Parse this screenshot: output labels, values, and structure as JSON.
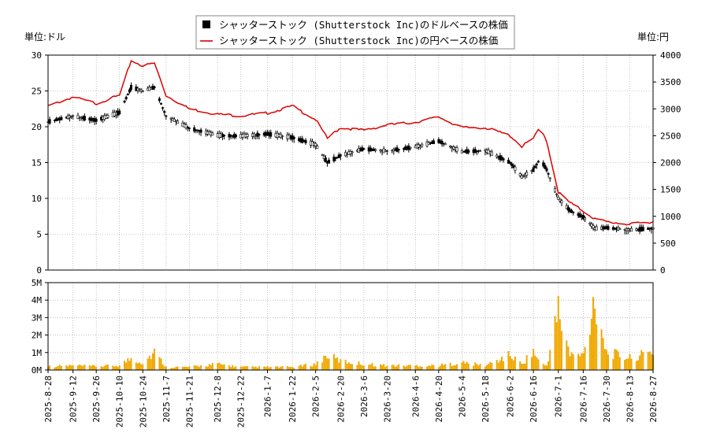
{
  "legend": {
    "usd": "シャッターストック (Shutterstock Inc)のドルベースの株価",
    "jpy": "シャッターストック (Shutterstock Inc)の円ベースの株価"
  },
  "units": {
    "left": "単位:ドル",
    "right": "単位:円"
  },
  "colors": {
    "usd": "#000000",
    "jpy": "#dd0000",
    "volume": "#f0a800",
    "grid": "#999999"
  },
  "chart_data": [
    {
      "type": "line",
      "name": "price",
      "x": [
        "2025-08-28",
        "2025-09-12",
        "2025-09-26",
        "2025-10-10",
        "2025-10-17",
        "2025-10-24",
        "2025-10-31",
        "2025-11-07",
        "2025-11-21",
        "2025-12-08",
        "2025-12-22",
        "2026-01-07",
        "2026-01-22",
        "2026-02-05",
        "2026-02-12",
        "2026-02-20",
        "2026-03-06",
        "2026-03-20",
        "2026-04-06",
        "2026-04-20",
        "2026-05-04",
        "2026-05-18",
        "2026-06-02",
        "2026-06-09",
        "2026-06-16",
        "2026-06-20",
        "2026-06-24",
        "2026-07-01",
        "2026-07-08",
        "2026-07-16",
        "2026-07-23",
        "2026-07-30",
        "2026-08-13",
        "2026-08-27"
      ],
      "series": [
        {
          "name": "シャッターストック (Shutterstock Inc)のドルベースの株価",
          "axis": "left",
          "values": [
            20.7,
            21.5,
            20.9,
            22.0,
            25.5,
            25.0,
            25.5,
            21.5,
            19.8,
            18.8,
            18.7,
            19.0,
            18.5,
            17.5,
            15.0,
            16.0,
            16.9,
            16.6,
            17.2,
            18.0,
            16.5,
            16.7,
            15.0,
            13.0,
            14.0,
            15.5,
            14.0,
            10.0,
            8.3,
            7.4,
            5.8,
            5.9,
            5.6,
            5.8
          ]
        },
        {
          "name": "シャッターストック (Shutterstock Inc)の円ベースの株価",
          "axis": "right",
          "values": [
            3050,
            3220,
            3100,
            3250,
            3900,
            3800,
            3850,
            3250,
            3000,
            2900,
            2870,
            2920,
            3050,
            2800,
            2450,
            2650,
            2600,
            2700,
            2750,
            2850,
            2650,
            2650,
            2500,
            2300,
            2450,
            2650,
            2400,
            1450,
            1250,
            1100,
            950,
            900,
            850,
            900
          ]
        }
      ],
      "left_axis": {
        "ylim": [
          0,
          30
        ],
        "ticks": [
          0,
          5,
          10,
          15,
          20,
          25,
          30
        ]
      },
      "right_axis": {
        "ylim": [
          0,
          4000
        ],
        "ticks": [
          0,
          500,
          1000,
          1500,
          2000,
          2500,
          3000,
          3500,
          4000
        ]
      },
      "grid": true,
      "legend": "top-center"
    },
    {
      "type": "bar",
      "name": "volume",
      "x": [
        "2025-08-28",
        "2025-09-12",
        "2025-09-26",
        "2025-10-10",
        "2025-10-17",
        "2025-10-24",
        "2025-10-31",
        "2025-11-07",
        "2025-11-21",
        "2025-12-08",
        "2025-12-22",
        "2026-01-07",
        "2026-01-22",
        "2026-02-05",
        "2026-02-12",
        "2026-02-20",
        "2026-03-06",
        "2026-03-20",
        "2026-04-06",
        "2026-04-20",
        "2026-05-04",
        "2026-05-18",
        "2026-06-02",
        "2026-06-09",
        "2026-06-16",
        "2026-06-20",
        "2026-06-24",
        "2026-07-01",
        "2026-07-08",
        "2026-07-16",
        "2026-07-23",
        "2026-07-30",
        "2026-08-13",
        "2026-08-27"
      ],
      "values": [
        0.25,
        0.3,
        0.25,
        0.3,
        0.8,
        0.5,
        1.2,
        0.2,
        0.2,
        0.4,
        0.2,
        0.2,
        0.2,
        0.4,
        1.0,
        0.6,
        0.4,
        0.3,
        0.3,
        0.3,
        0.5,
        0.3,
        1.0,
        0.4,
        1.3,
        0.4,
        0.3,
        4.0,
        1.0,
        1.0,
        5.0,
        1.2,
        0.8,
        1.2
      ],
      "unit": "M",
      "ylim": [
        0,
        5
      ],
      "ticks": [
        "0M",
        "1M",
        "2M",
        "3M",
        "4M",
        "5M"
      ],
      "grid": true
    }
  ],
  "x_ticks": [
    "2025-8-28",
    "2025-9-12",
    "2025-9-26",
    "2025-10-10",
    "2025-10-24",
    "2025-11-7",
    "2025-11-21",
    "2025-12-8",
    "2025-12-22",
    "2026-1-7",
    "2026-1-22",
    "2026-2-5",
    "2026-2-20",
    "2026-3-6",
    "2026-3-20",
    "2026-4-6",
    "2026-4-20",
    "2026-5-4",
    "2026-5-18",
    "2026-6-2",
    "2026-6-16",
    "2026-7-1",
    "2026-7-16",
    "2026-7-30",
    "2026-8-13",
    "2026-8-27"
  ]
}
